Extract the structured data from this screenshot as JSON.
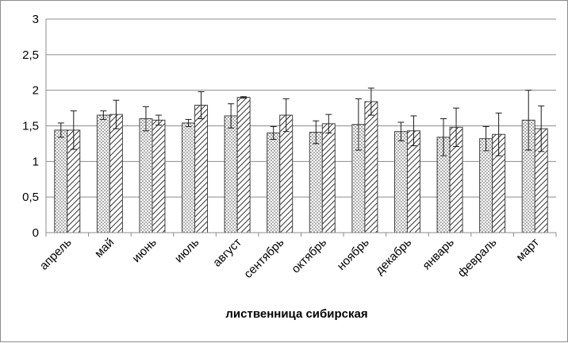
{
  "chart_data": {
    "type": "bar",
    "title": "",
    "xlabel": "лиственница сибирская",
    "ylabel": "",
    "ylim": [
      0,
      3
    ],
    "yticks": [
      "0",
      "0,5",
      "1",
      "1,5",
      "2",
      "2,5",
      "3"
    ],
    "yticks_values": [
      0,
      0.5,
      1,
      1.5,
      2,
      2.5,
      3
    ],
    "grid": true,
    "legend": "none",
    "categories": [
      "апрель",
      "май",
      "июнь",
      "июль",
      "август",
      "сентябрь",
      "октябрь",
      "ноябрь",
      "декабрь",
      "январь",
      "февраль",
      "март"
    ],
    "series": [
      {
        "pattern": "dotted",
        "values": [
          1.44,
          1.65,
          1.6,
          1.54,
          1.64,
          1.4,
          1.41,
          1.52,
          1.42,
          1.34,
          1.32,
          1.58
        ],
        "errors": [
          0.1,
          0.06,
          0.17,
          0.05,
          0.17,
          0.09,
          0.16,
          0.36,
          0.13,
          0.26,
          0.17,
          0.42
        ]
      },
      {
        "pattern": "hatched",
        "values": [
          1.44,
          1.66,
          1.58,
          1.79,
          1.9,
          1.65,
          1.53,
          1.84,
          1.43,
          1.48,
          1.38,
          1.46
        ],
        "errors": [
          0.27,
          0.2,
          0.07,
          0.19,
          0.01,
          0.23,
          0.13,
          0.19,
          0.21,
          0.27,
          0.3,
          0.32
        ]
      }
    ]
  }
}
